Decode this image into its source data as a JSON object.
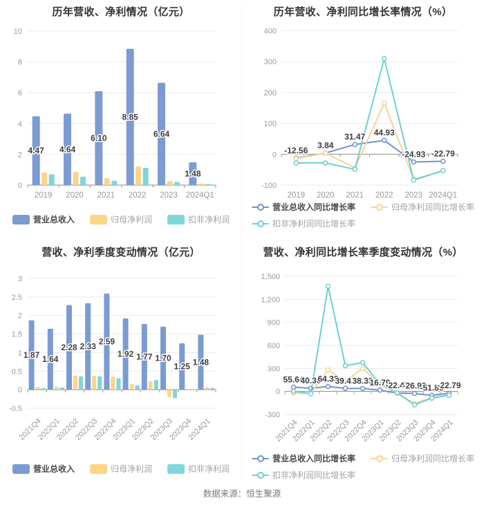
{
  "footer": {
    "source_text": "数据来源：恒生聚源"
  },
  "colors": {
    "revenue_blue": "#7b9bd2",
    "net_profit_orange": "#fbd588",
    "deducted_profit_teal": "#80d6d9",
    "line_blue": "#6e93cc",
    "line_orange": "#f8d394",
    "line_teal": "#6ad0d4",
    "grid": "#e9e9e9",
    "axis": "#999999",
    "title_text": "#333333",
    "tick_text": "#999999",
    "value_text": "#3d3d3d"
  },
  "chart_data": [
    {
      "type": "bar",
      "title": "历年营收、净利情况（亿元）",
      "unit": "亿元",
      "grid": true,
      "legend_position": "bottom",
      "categories": [
        "2019",
        "2020",
        "2021",
        "2022",
        "2023",
        "2024Q1"
      ],
      "ylim": [
        0,
        10
      ],
      "yticks": [
        0,
        2,
        4,
        6,
        8,
        10
      ],
      "ytick_labels": [
        "0",
        "2",
        "4",
        "6",
        "8",
        "10"
      ],
      "series": [
        {
          "name": "营业总收入",
          "color": "#7b9bd2",
          "values": [
            4.47,
            4.64,
            6.1,
            8.85,
            6.64,
            1.48
          ],
          "labels": [
            "4.47",
            "4.64",
            "6.10",
            "8.85",
            "6.64",
            "1.48"
          ]
        },
        {
          "name": "归母净利润",
          "color": "#fbd588",
          "values": [
            0.81,
            0.85,
            0.45,
            1.21,
            0.25,
            0.1
          ]
        },
        {
          "name": "扣非净利润",
          "color": "#80d6d9",
          "values": [
            0.7,
            0.55,
            0.28,
            1.12,
            0.2,
            0.07
          ]
        }
      ]
    },
    {
      "type": "line",
      "title": "历年营收、净利同比增长率情况（%）",
      "unit": "%",
      "grid": true,
      "legend_position": "bottom",
      "categories": [
        "2019",
        "2020",
        "2021",
        "2022",
        "2023",
        "2024Q1"
      ],
      "ylim": [
        -100,
        400
      ],
      "yticks": [
        -100,
        0,
        100,
        200,
        300,
        400
      ],
      "ytick_labels": [
        "-100",
        "0",
        "100",
        "200",
        "300",
        "400"
      ],
      "series": [
        {
          "name": "营业总收入同比增长率",
          "color": "#6e93cc",
          "values": [
            -12.56,
            3.84,
            31.47,
            44.93,
            -24.93,
            -22.79
          ],
          "labels": [
            "-12.56",
            "3.84",
            "31.47",
            "44.93",
            "-24.93",
            "-22.79"
          ]
        },
        {
          "name": "归母净利润同比增长率",
          "color": "#f8d394",
          "values": [
            -14,
            4,
            -44,
            165,
            -81,
            -53
          ]
        },
        {
          "name": "扣非净利润同比增长率",
          "color": "#6ad0d4",
          "values": [
            -28,
            -28,
            -49,
            310,
            -84,
            -53
          ]
        }
      ]
    },
    {
      "type": "bar",
      "title": "营收、净利季度变动情况（亿元）",
      "unit": "亿元",
      "grid": true,
      "legend_position": "bottom",
      "categories": [
        "2021Q4",
        "2022Q1",
        "2022Q2",
        "2022Q3",
        "2022Q4",
        "2023Q1",
        "2023Q2",
        "2023Q3",
        "2023Q4",
        "2024Q1"
      ],
      "ylim": [
        -0.5,
        3
      ],
      "yticks": [
        -0.5,
        0,
        0.5,
        1,
        1.5,
        2,
        2.5,
        3
      ],
      "ytick_labels": [
        "-0.5",
        "0",
        "0.5",
        "1",
        "1.5",
        "2",
        "2.5",
        "3"
      ],
      "series": [
        {
          "name": "营业总收入",
          "color": "#7b9bd2",
          "values": [
            1.87,
            1.64,
            2.28,
            2.33,
            2.59,
            1.92,
            1.77,
            1.7,
            1.25,
            1.48
          ],
          "labels": [
            "1.87",
            "1.64",
            "2.28",
            "2.33",
            "2.59",
            "1.92",
            "1.77",
            "1.70",
            "1.25",
            "1.48"
          ]
        },
        {
          "name": "归母净利润",
          "color": "#fbd588",
          "values": [
            0.07,
            0.08,
            0.38,
            0.37,
            0.35,
            0.15,
            0.23,
            -0.2,
            0.02,
            0.07
          ]
        },
        {
          "name": "扣非净利润",
          "color": "#80d6d9",
          "values": [
            0.05,
            0.06,
            0.36,
            0.36,
            0.31,
            0.12,
            0.26,
            -0.23,
            0.01,
            0.05
          ]
        }
      ]
    },
    {
      "type": "line",
      "title": "营收、净利同比增长率季度变动情况（%）",
      "unit": "%",
      "grid": true,
      "legend_position": "bottom",
      "categories": [
        "2021Q4",
        "2022Q1",
        "2022Q2",
        "2022Q3",
        "2022Q4",
        "2023Q1",
        "2023Q2",
        "2023Q3",
        "2023Q4",
        "2024Q1"
      ],
      "ylim": [
        -300,
        1500
      ],
      "yticks": [
        -300,
        0,
        300,
        600,
        900,
        1200,
        1500
      ],
      "ytick_labels": [
        "-300",
        "0",
        "300",
        "600",
        "900",
        "1,200",
        "1,500"
      ],
      "series": [
        {
          "name": "营业总收入同比增长率",
          "color": "#6e93cc",
          "values": [
            55.64,
            40.3,
            64.38,
            39.42,
            38.33,
            16.79,
            -22.47,
            -26.93,
            -51.8,
            -22.79
          ],
          "labels": [
            "55.64",
            "40.30",
            "64.38",
            "39.42",
            "38.33",
            "16.79",
            "-22.47",
            "-26.93",
            "-51.80",
            "-22.79"
          ]
        },
        {
          "name": "归母净利润同比增长率",
          "color": "#f8d394",
          "values": [
            -20,
            -25,
            280,
            130,
            300,
            88,
            -25,
            -160,
            -80,
            -45
          ]
        },
        {
          "name": "扣非净利润同比增长率",
          "color": "#6ad0d4",
          "values": [
            2,
            -30,
            1370,
            335,
            375,
            95,
            -18,
            -175,
            -88,
            -50
          ]
        }
      ]
    }
  ]
}
